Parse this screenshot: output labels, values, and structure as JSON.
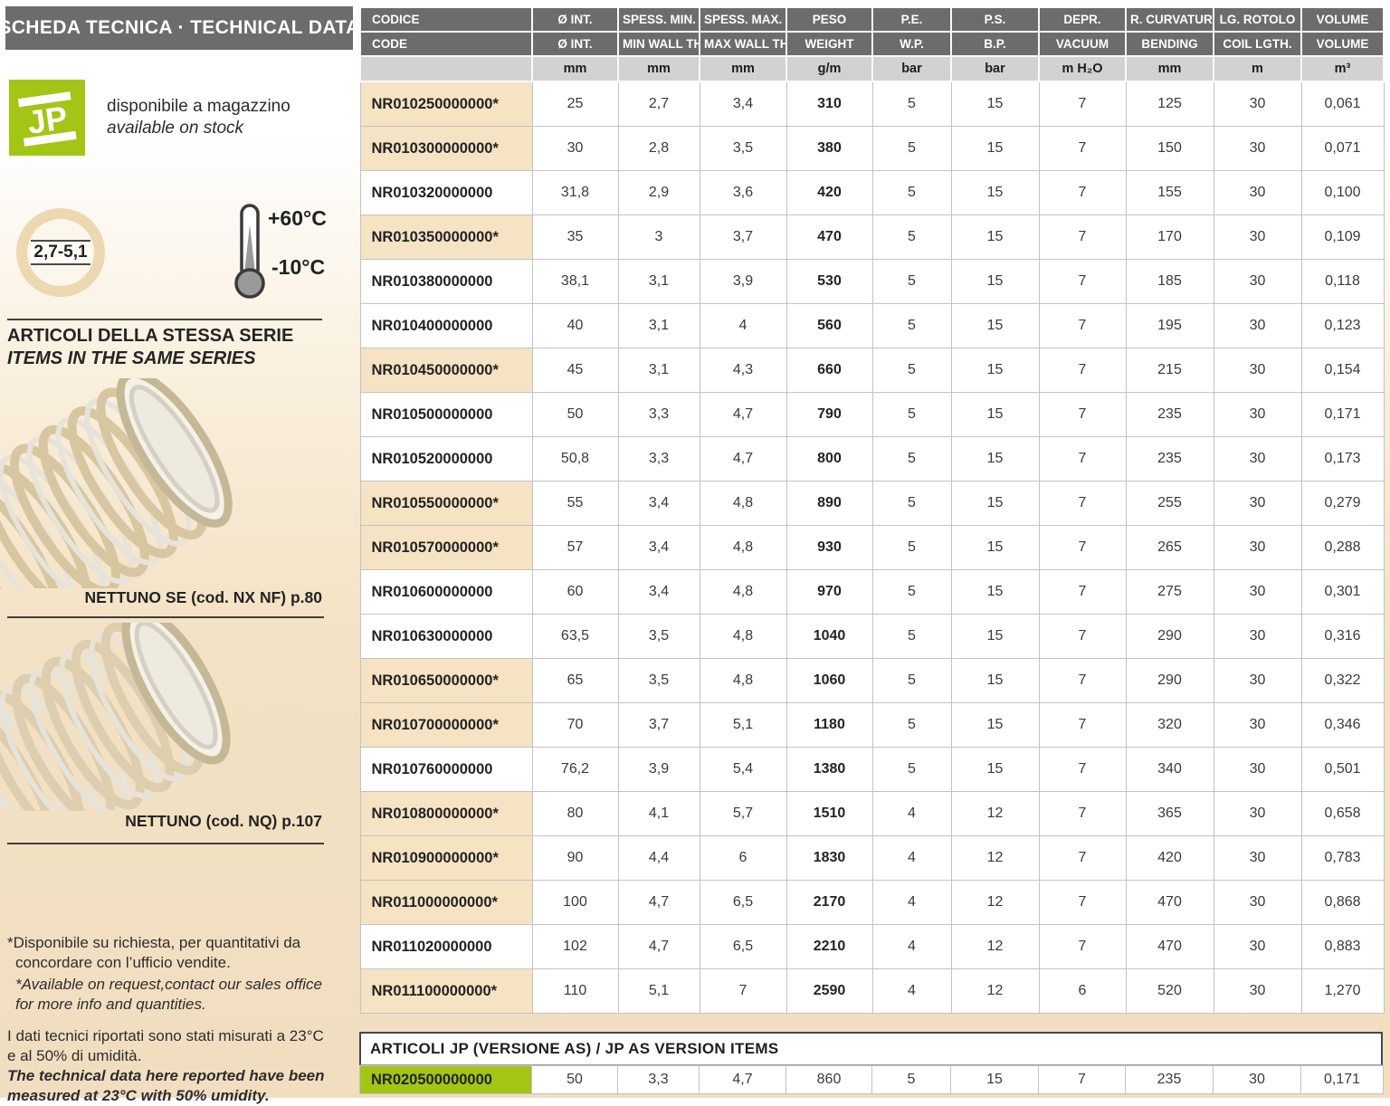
{
  "colors": {
    "brand_green": "#a3c516",
    "header_gray": "#6c6c6c",
    "units_gray": "#d2d2d2",
    "highlight_beige": "#f5e3c4",
    "page_beige": "#f2e0c2"
  },
  "sidebar": {
    "title": "SCHEDA TECNICA · TECHNICAL DATA",
    "logo_text": "JP",
    "availability_it": "disponibile a magazzino",
    "availability_en": "available on stock",
    "wall_thickness_badge": "2,7-5,1",
    "temp_max": "+60°C",
    "temp_min": "-10°C",
    "series_heading_it": "ARTICOLI DELLA STESSA SERIE",
    "series_heading_en": "ITEMS IN THE SAME SERIES",
    "related_items": [
      {
        "caption": "NETTUNO SE (cod. NX NF) p.80"
      },
      {
        "caption": "NETTUNO (cod. NQ) p.107"
      }
    ],
    "footnote_request_it": [
      "*Disponibile su richiesta, per quantitativi da",
      "concordare con l’ufficio vendite."
    ],
    "footnote_request_en": [
      "*Available on request,contact our sales office",
      "for more info and quantities."
    ],
    "footnote_measure_it": [
      "I dati tecnici riportati sono stati misurati a 23°C",
      "e al 50% di umidità."
    ],
    "footnote_measure_en": [
      "The technical data here reported have been",
      "measured at 23°C with 50% umidity."
    ]
  },
  "table": {
    "headers_it": [
      "CODICE",
      "Ø INT.",
      "SPESS. MIN.",
      "SPESS. MAX.",
      "PESO",
      "P.E.",
      "P.S.",
      "DEPR.",
      "R. CURVATURA",
      "LG. ROTOLO",
      "VOLUME"
    ],
    "headers_en": [
      "CODE",
      "Ø INT.",
      "MIN WALL TH.",
      "MAX WALL TH.",
      "WEIGHT",
      "W.P.",
      "B.P.",
      "VACUUM",
      "BENDING",
      "COIL LGTH.",
      "VOLUME"
    ],
    "units": [
      "",
      "mm",
      "mm",
      "mm",
      "g/m",
      "bar",
      "bar",
      "m H₂O",
      "mm",
      "m",
      "m³"
    ],
    "rows": [
      {
        "code": "NR010250000000*",
        "starred": true,
        "values": [
          "25",
          "2,7",
          "3,4",
          "310",
          "5",
          "15",
          "7",
          "125",
          "30",
          "0,061"
        ]
      },
      {
        "code": "NR010300000000*",
        "starred": true,
        "values": [
          "30",
          "2,8",
          "3,5",
          "380",
          "5",
          "15",
          "7",
          "150",
          "30",
          "0,071"
        ]
      },
      {
        "code": "NR010320000000",
        "starred": false,
        "values": [
          "31,8",
          "2,9",
          "3,6",
          "420",
          "5",
          "15",
          "7",
          "155",
          "30",
          "0,100"
        ]
      },
      {
        "code": "NR010350000000*",
        "starred": true,
        "values": [
          "35",
          "3",
          "3,7",
          "470",
          "5",
          "15",
          "7",
          "170",
          "30",
          "0,109"
        ]
      },
      {
        "code": "NR010380000000",
        "starred": false,
        "values": [
          "38,1",
          "3,1",
          "3,9",
          "530",
          "5",
          "15",
          "7",
          "185",
          "30",
          "0,118"
        ]
      },
      {
        "code": "NR010400000000",
        "starred": false,
        "values": [
          "40",
          "3,1",
          "4",
          "560",
          "5",
          "15",
          "7",
          "195",
          "30",
          "0,123"
        ]
      },
      {
        "code": "NR010450000000*",
        "starred": true,
        "values": [
          "45",
          "3,1",
          "4,3",
          "660",
          "5",
          "15",
          "7",
          "215",
          "30",
          "0,154"
        ]
      },
      {
        "code": "NR010500000000",
        "starred": false,
        "values": [
          "50",
          "3,3",
          "4,7",
          "790",
          "5",
          "15",
          "7",
          "235",
          "30",
          "0,171"
        ]
      },
      {
        "code": "NR010520000000",
        "starred": false,
        "values": [
          "50,8",
          "3,3",
          "4,7",
          "800",
          "5",
          "15",
          "7",
          "235",
          "30",
          "0,173"
        ]
      },
      {
        "code": "NR010550000000*",
        "starred": true,
        "values": [
          "55",
          "3,4",
          "4,8",
          "890",
          "5",
          "15",
          "7",
          "255",
          "30",
          "0,279"
        ]
      },
      {
        "code": "NR010570000000*",
        "starred": true,
        "values": [
          "57",
          "3,4",
          "4,8",
          "930",
          "5",
          "15",
          "7",
          "265",
          "30",
          "0,288"
        ]
      },
      {
        "code": "NR010600000000",
        "starred": false,
        "values": [
          "60",
          "3,4",
          "4,8",
          "970",
          "5",
          "15",
          "7",
          "275",
          "30",
          "0,301"
        ]
      },
      {
        "code": "NR010630000000",
        "starred": false,
        "values": [
          "63,5",
          "3,5",
          "4,8",
          "1040",
          "5",
          "15",
          "7",
          "290",
          "30",
          "0,316"
        ]
      },
      {
        "code": "NR010650000000*",
        "starred": true,
        "values": [
          "65",
          "3,5",
          "4,8",
          "1060",
          "5",
          "15",
          "7",
          "290",
          "30",
          "0,322"
        ]
      },
      {
        "code": "NR010700000000*",
        "starred": true,
        "values": [
          "70",
          "3,7",
          "5,1",
          "1180",
          "5",
          "15",
          "7",
          "320",
          "30",
          "0,346"
        ]
      },
      {
        "code": "NR010760000000",
        "starred": false,
        "values": [
          "76,2",
          "3,9",
          "5,4",
          "1380",
          "5",
          "15",
          "7",
          "340",
          "30",
          "0,501"
        ]
      },
      {
        "code": "NR010800000000*",
        "starred": true,
        "values": [
          "80",
          "4,1",
          "5,7",
          "1510",
          "4",
          "12",
          "7",
          "365",
          "30",
          "0,658"
        ]
      },
      {
        "code": "NR010900000000*",
        "starred": true,
        "values": [
          "90",
          "4,4",
          "6",
          "1830",
          "4",
          "12",
          "7",
          "420",
          "30",
          "0,783"
        ]
      },
      {
        "code": "NR011000000000*",
        "starred": true,
        "values": [
          "100",
          "4,7",
          "6,5",
          "2170",
          "4",
          "12",
          "7",
          "470",
          "30",
          "0,868"
        ]
      },
      {
        "code": "NR011020000000",
        "starred": false,
        "values": [
          "102",
          "4,7",
          "6,5",
          "2210",
          "4",
          "12",
          "7",
          "470",
          "30",
          "0,883"
        ]
      },
      {
        "code": "NR011100000000*",
        "starred": true,
        "values": [
          "110",
          "5,1",
          "7",
          "2590",
          "4",
          "12",
          "6",
          "520",
          "30",
          "1,270"
        ]
      }
    ]
  },
  "as_table": {
    "title": "ARTICOLI JP (VERSIONE AS) / JP AS VERSION ITEMS",
    "rows": [
      {
        "code": "NR020500000000",
        "highlight": "green",
        "values": [
          "50",
          "3,3",
          "4,7",
          "860",
          "5",
          "15",
          "7",
          "235",
          "30",
          "0,171"
        ]
      }
    ]
  }
}
